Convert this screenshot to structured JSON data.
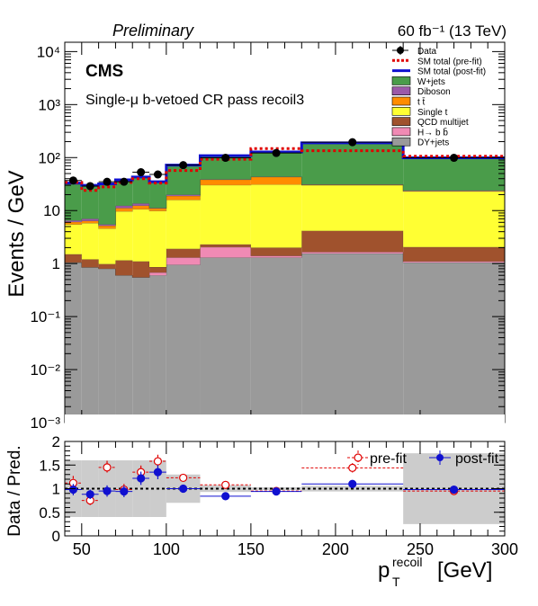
{
  "header": {
    "left": "Preliminary",
    "right": "60 fb⁻¹ (13 TeV)"
  },
  "experiment": "CMS",
  "region": "Single-μ b-vetoed CR pass recoil3",
  "colors": {
    "wjets": "#4a9c4a",
    "diboson": "#9b59a8",
    "ttbar": "#ff8c00",
    "singlet": "#ffff33",
    "qcd": "#a0522d",
    "hbb": "#f08ab4",
    "dy": "#9a9a9a",
    "prefit": "#e00000",
    "postfit": "#1010d0",
    "unc_band": "#cccccc"
  },
  "chart_data": [
    {
      "type": "bar",
      "stacked": true,
      "title": "",
      "xlabel": "",
      "ylabel": "Events / GeV",
      "ylog": true,
      "ylim": [
        0.001,
        15000
      ],
      "xlim": [
        40,
        300
      ],
      "bin_edges": [
        40,
        50,
        60,
        70,
        80,
        90,
        100,
        120,
        150,
        180,
        240,
        300
      ],
      "y_ticks": [
        "10⁻³",
        "10⁻²",
        "10⁻¹",
        "1",
        "10",
        "10²",
        "10³",
        "10⁴"
      ],
      "series": [
        {
          "name": "DY+jets",
          "color_key": "dy",
          "values": [
            1.05,
            0.85,
            0.8,
            0.6,
            0.55,
            0.6,
            0.95,
            1.3,
            1.3,
            1.55,
            1.05
          ]
        },
        {
          "name": "H→ b b̄",
          "color_key": "hbb",
          "values": [
            0.0,
            0.0,
            0.0,
            0.0,
            0.0,
            0.08,
            0.35,
            0.75,
            0.1,
            0.1,
            0.05
          ]
        },
        {
          "name": "QCD multijet",
          "color_key": "qcd",
          "values": [
            0.45,
            0.35,
            0.18,
            0.55,
            0.55,
            0.18,
            0.6,
            0.25,
            0.6,
            2.5,
            0.95
          ]
        },
        {
          "name": "Single t",
          "color_key": "singlet",
          "values": [
            4.0,
            4.6,
            3.6,
            8.5,
            9.5,
            9.0,
            14.0,
            28.0,
            29.0,
            26.0,
            21.0
          ]
        },
        {
          "name": "t t̄",
          "color_key": "ttbar",
          "values": [
            0.6,
            0.6,
            0.6,
            1.5,
            1.8,
            1.2,
            3.0,
            8.0,
            12.0,
            0.5,
            0.4
          ]
        },
        {
          "name": "Diboson",
          "color_key": "diboson",
          "values": [
            0.4,
            0.6,
            0.3,
            1.2,
            1.2,
            0.2,
            1.0,
            0.5,
            0.5,
            0.5,
            0.5
          ]
        },
        {
          "name": "W+jets",
          "color_key": "wjets",
          "values": [
            25.0,
            23.0,
            27.0,
            25.0,
            29.0,
            24.0,
            52.0,
            70.0,
            84.0,
            160.0,
            75.0
          ]
        }
      ],
      "sm_postfit": [
        33,
        30,
        32,
        38,
        43,
        35,
        72,
        109,
        128,
        190,
        99
      ],
      "sm_prefit": [
        34,
        24,
        28,
        34,
        40,
        33,
        57,
        93,
        148,
        135,
        106
      ],
      "data": {
        "x": [
          45,
          55,
          65,
          75,
          85,
          95,
          110,
          135,
          165,
          210,
          270
        ],
        "y": [
          37,
          29,
          35,
          35,
          53,
          48,
          72,
          99,
          122,
          195,
          99
        ],
        "yerr": [
          5,
          4,
          4,
          5,
          6,
          6,
          4,
          5,
          4,
          4,
          3
        ]
      },
      "legend": {
        "placement": "top-right",
        "entries": [
          {
            "label": "Data",
            "kind": "marker"
          },
          {
            "label": "SM total (pre-fit)",
            "kind": "dashed",
            "color_key": "prefit"
          },
          {
            "label": "SM total (post-fit)",
            "kind": "line",
            "color_key": "postfit"
          },
          {
            "label": "W+jets",
            "kind": "box",
            "color_key": "wjets"
          },
          {
            "label": "Diboson",
            "kind": "box",
            "color_key": "diboson"
          },
          {
            "label": "t t̄",
            "kind": "box",
            "color_key": "ttbar"
          },
          {
            "label": "Single t",
            "kind": "box",
            "color_key": "singlet"
          },
          {
            "label": "QCD multijet",
            "kind": "box",
            "color_key": "qcd"
          },
          {
            "label": "H→ b b̄",
            "kind": "box",
            "color_key": "hbb"
          },
          {
            "label": "DY+jets",
            "kind": "box",
            "color_key": "dy"
          }
        ]
      }
    },
    {
      "type": "scatter",
      "title": "",
      "xlabel": "p_T^recoil [GeV]",
      "xlabel_main": "p",
      "xlabel_sub": "T",
      "xlabel_sup": "recoil",
      "xlabel_unit": " [GeV]",
      "ylabel": "Data / Pred.",
      "xlim": [
        40,
        300
      ],
      "ylim": [
        0,
        2
      ],
      "x_ticks": [
        50,
        100,
        150,
        200,
        250,
        300
      ],
      "y_ticks": [
        "0",
        "0.5",
        "1",
        "1.5",
        "2"
      ],
      "bin_edges": [
        40,
        50,
        60,
        70,
        80,
        90,
        100,
        120,
        150,
        180,
        240,
        300
      ],
      "unc_band": [
        0.6,
        0.6,
        0.6,
        0.6,
        0.6,
        0.6,
        0.3,
        0.07,
        0.03,
        0.06,
        0.75
      ],
      "prefit": {
        "name": "pre-fit",
        "x": [
          45,
          55,
          65,
          75,
          85,
          95,
          110,
          135,
          165,
          210,
          270
        ],
        "y": [
          1.12,
          0.75,
          1.45,
          0.98,
          1.35,
          1.58,
          1.23,
          1.08,
          0.95,
          1.44,
          0.95
        ],
        "yerr": [
          0.15,
          0.1,
          0.14,
          0.12,
          0.14,
          0.14,
          0.08,
          0.06,
          0.04,
          0.1,
          0.05
        ]
      },
      "postfit": {
        "name": "post-fit",
        "x": [
          45,
          55,
          65,
          75,
          85,
          95,
          110,
          135,
          165,
          210,
          270
        ],
        "y": [
          0.98,
          0.88,
          0.95,
          0.94,
          1.22,
          1.35,
          1.0,
          0.84,
          0.94,
          1.1,
          0.98
        ],
        "yerr": [
          0.12,
          0.1,
          0.12,
          0.12,
          0.14,
          0.15,
          0.06,
          0.05,
          0.04,
          0.06,
          0.06
        ]
      }
    }
  ]
}
